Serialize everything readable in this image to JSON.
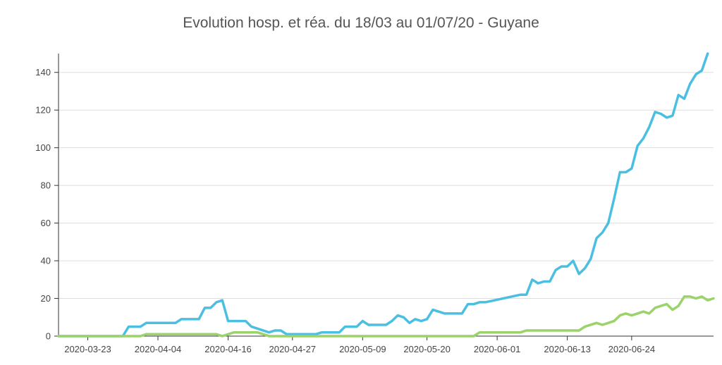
{
  "chart_data": {
    "type": "line",
    "title": "Evolution hosp. et réa. du 18/03 au 01/07/20 - Guyane",
    "xlabel": "",
    "ylabel": "",
    "x_start": "2020-03-18",
    "x_end": "2020-07-01",
    "ylim": [
      0,
      150
    ],
    "yticks": [
      0,
      20,
      40,
      60,
      80,
      100,
      120,
      140
    ],
    "xticks": [
      "2020-03-23",
      "2020-04-04",
      "2020-04-16",
      "2020-04-27",
      "2020-05-09",
      "2020-05-20",
      "2020-06-01",
      "2020-06-13",
      "2020-06-24"
    ],
    "grid": "horizontal",
    "series": [
      {
        "color": "#4bbfe2",
        "points": [
          [
            "2020-03-18",
            0
          ],
          [
            "2020-03-29",
            0
          ],
          [
            "2020-03-30",
            5
          ],
          [
            "2020-03-31",
            5
          ],
          [
            "2020-04-01",
            5
          ],
          [
            "2020-04-02",
            7
          ],
          [
            "2020-04-07",
            7
          ],
          [
            "2020-04-08",
            9
          ],
          [
            "2020-04-11",
            9
          ],
          [
            "2020-04-12",
            15
          ],
          [
            "2020-04-13",
            15
          ],
          [
            "2020-04-14",
            18
          ],
          [
            "2020-04-15",
            19
          ],
          [
            "2020-04-16",
            8
          ],
          [
            "2020-04-19",
            8
          ],
          [
            "2020-04-20",
            5
          ],
          [
            "2020-04-23",
            2
          ],
          [
            "2020-04-24",
            3
          ],
          [
            "2020-04-25",
            3
          ],
          [
            "2020-04-26",
            1
          ],
          [
            "2020-05-01",
            1
          ],
          [
            "2020-05-02",
            2
          ],
          [
            "2020-05-05",
            2
          ],
          [
            "2020-05-06",
            5
          ],
          [
            "2020-05-08",
            5
          ],
          [
            "2020-05-09",
            8
          ],
          [
            "2020-05-10",
            6
          ],
          [
            "2020-05-13",
            6
          ],
          [
            "2020-05-14",
            8
          ],
          [
            "2020-05-15",
            11
          ],
          [
            "2020-05-16",
            10
          ],
          [
            "2020-05-17",
            7
          ],
          [
            "2020-05-18",
            9
          ],
          [
            "2020-05-19",
            8
          ],
          [
            "2020-05-20",
            9
          ],
          [
            "2020-05-21",
            14
          ],
          [
            "2020-05-22",
            13
          ],
          [
            "2020-05-23",
            12
          ],
          [
            "2020-05-26",
            12
          ],
          [
            "2020-05-27",
            17
          ],
          [
            "2020-05-28",
            17
          ],
          [
            "2020-05-29",
            18
          ],
          [
            "2020-05-30",
            18
          ],
          [
            "2020-06-05",
            22
          ],
          [
            "2020-06-06",
            22
          ],
          [
            "2020-06-07",
            30
          ],
          [
            "2020-06-08",
            28
          ],
          [
            "2020-06-09",
            29
          ],
          [
            "2020-06-10",
            29
          ],
          [
            "2020-06-11",
            35
          ],
          [
            "2020-06-12",
            37
          ],
          [
            "2020-06-13",
            37
          ],
          [
            "2020-06-14",
            40
          ],
          [
            "2020-06-15",
            33
          ],
          [
            "2020-06-16",
            36
          ],
          [
            "2020-06-17",
            41
          ],
          [
            "2020-06-18",
            52
          ],
          [
            "2020-06-19",
            55
          ],
          [
            "2020-06-20",
            60
          ],
          [
            "2020-06-21",
            73
          ],
          [
            "2020-06-22",
            87
          ],
          [
            "2020-06-23",
            87
          ],
          [
            "2020-06-24",
            89
          ],
          [
            "2020-06-25",
            101
          ],
          [
            "2020-06-26",
            105
          ],
          [
            "2020-06-27",
            111
          ],
          [
            "2020-06-28",
            119
          ],
          [
            "2020-06-29",
            118
          ],
          [
            "2020-06-30",
            116
          ],
          [
            "2020-07-01",
            117
          ],
          [
            "2020-07-02",
            128
          ],
          [
            "2020-07-03",
            126
          ],
          [
            "2020-07-04",
            134
          ],
          [
            "2020-07-05",
            139
          ],
          [
            "2020-07-06",
            141
          ],
          [
            "2020-07-07",
            150
          ]
        ]
      },
      {
        "color": "#9bd36a",
        "points": [
          [
            "2020-03-18",
            0
          ],
          [
            "2020-04-01",
            0
          ],
          [
            "2020-04-02",
            1
          ],
          [
            "2020-04-14",
            1
          ],
          [
            "2020-04-15",
            0
          ],
          [
            "2020-04-17",
            2
          ],
          [
            "2020-04-21",
            2
          ],
          [
            "2020-04-23",
            0
          ],
          [
            "2020-05-28",
            0
          ],
          [
            "2020-05-29",
            2
          ],
          [
            "2020-06-05",
            2
          ],
          [
            "2020-06-06",
            3
          ],
          [
            "2020-06-15",
            3
          ],
          [
            "2020-06-16",
            5
          ],
          [
            "2020-06-18",
            7
          ],
          [
            "2020-06-19",
            6
          ],
          [
            "2020-06-20",
            7
          ],
          [
            "2020-06-21",
            8
          ],
          [
            "2020-06-22",
            11
          ],
          [
            "2020-06-23",
            12
          ],
          [
            "2020-06-24",
            11
          ],
          [
            "2020-06-25",
            12
          ],
          [
            "2020-06-26",
            13
          ],
          [
            "2020-06-27",
            12
          ],
          [
            "2020-06-28",
            15
          ],
          [
            "2020-06-29",
            16
          ],
          [
            "2020-06-30",
            17
          ],
          [
            "2020-07-01",
            14
          ],
          [
            "2020-07-02",
            16
          ],
          [
            "2020-07-03",
            21
          ],
          [
            "2020-07-04",
            21
          ],
          [
            "2020-07-05",
            20
          ],
          [
            "2020-07-06",
            21
          ],
          [
            "2020-07-07",
            19
          ],
          [
            "2020-07-08",
            20
          ]
        ]
      }
    ]
  }
}
